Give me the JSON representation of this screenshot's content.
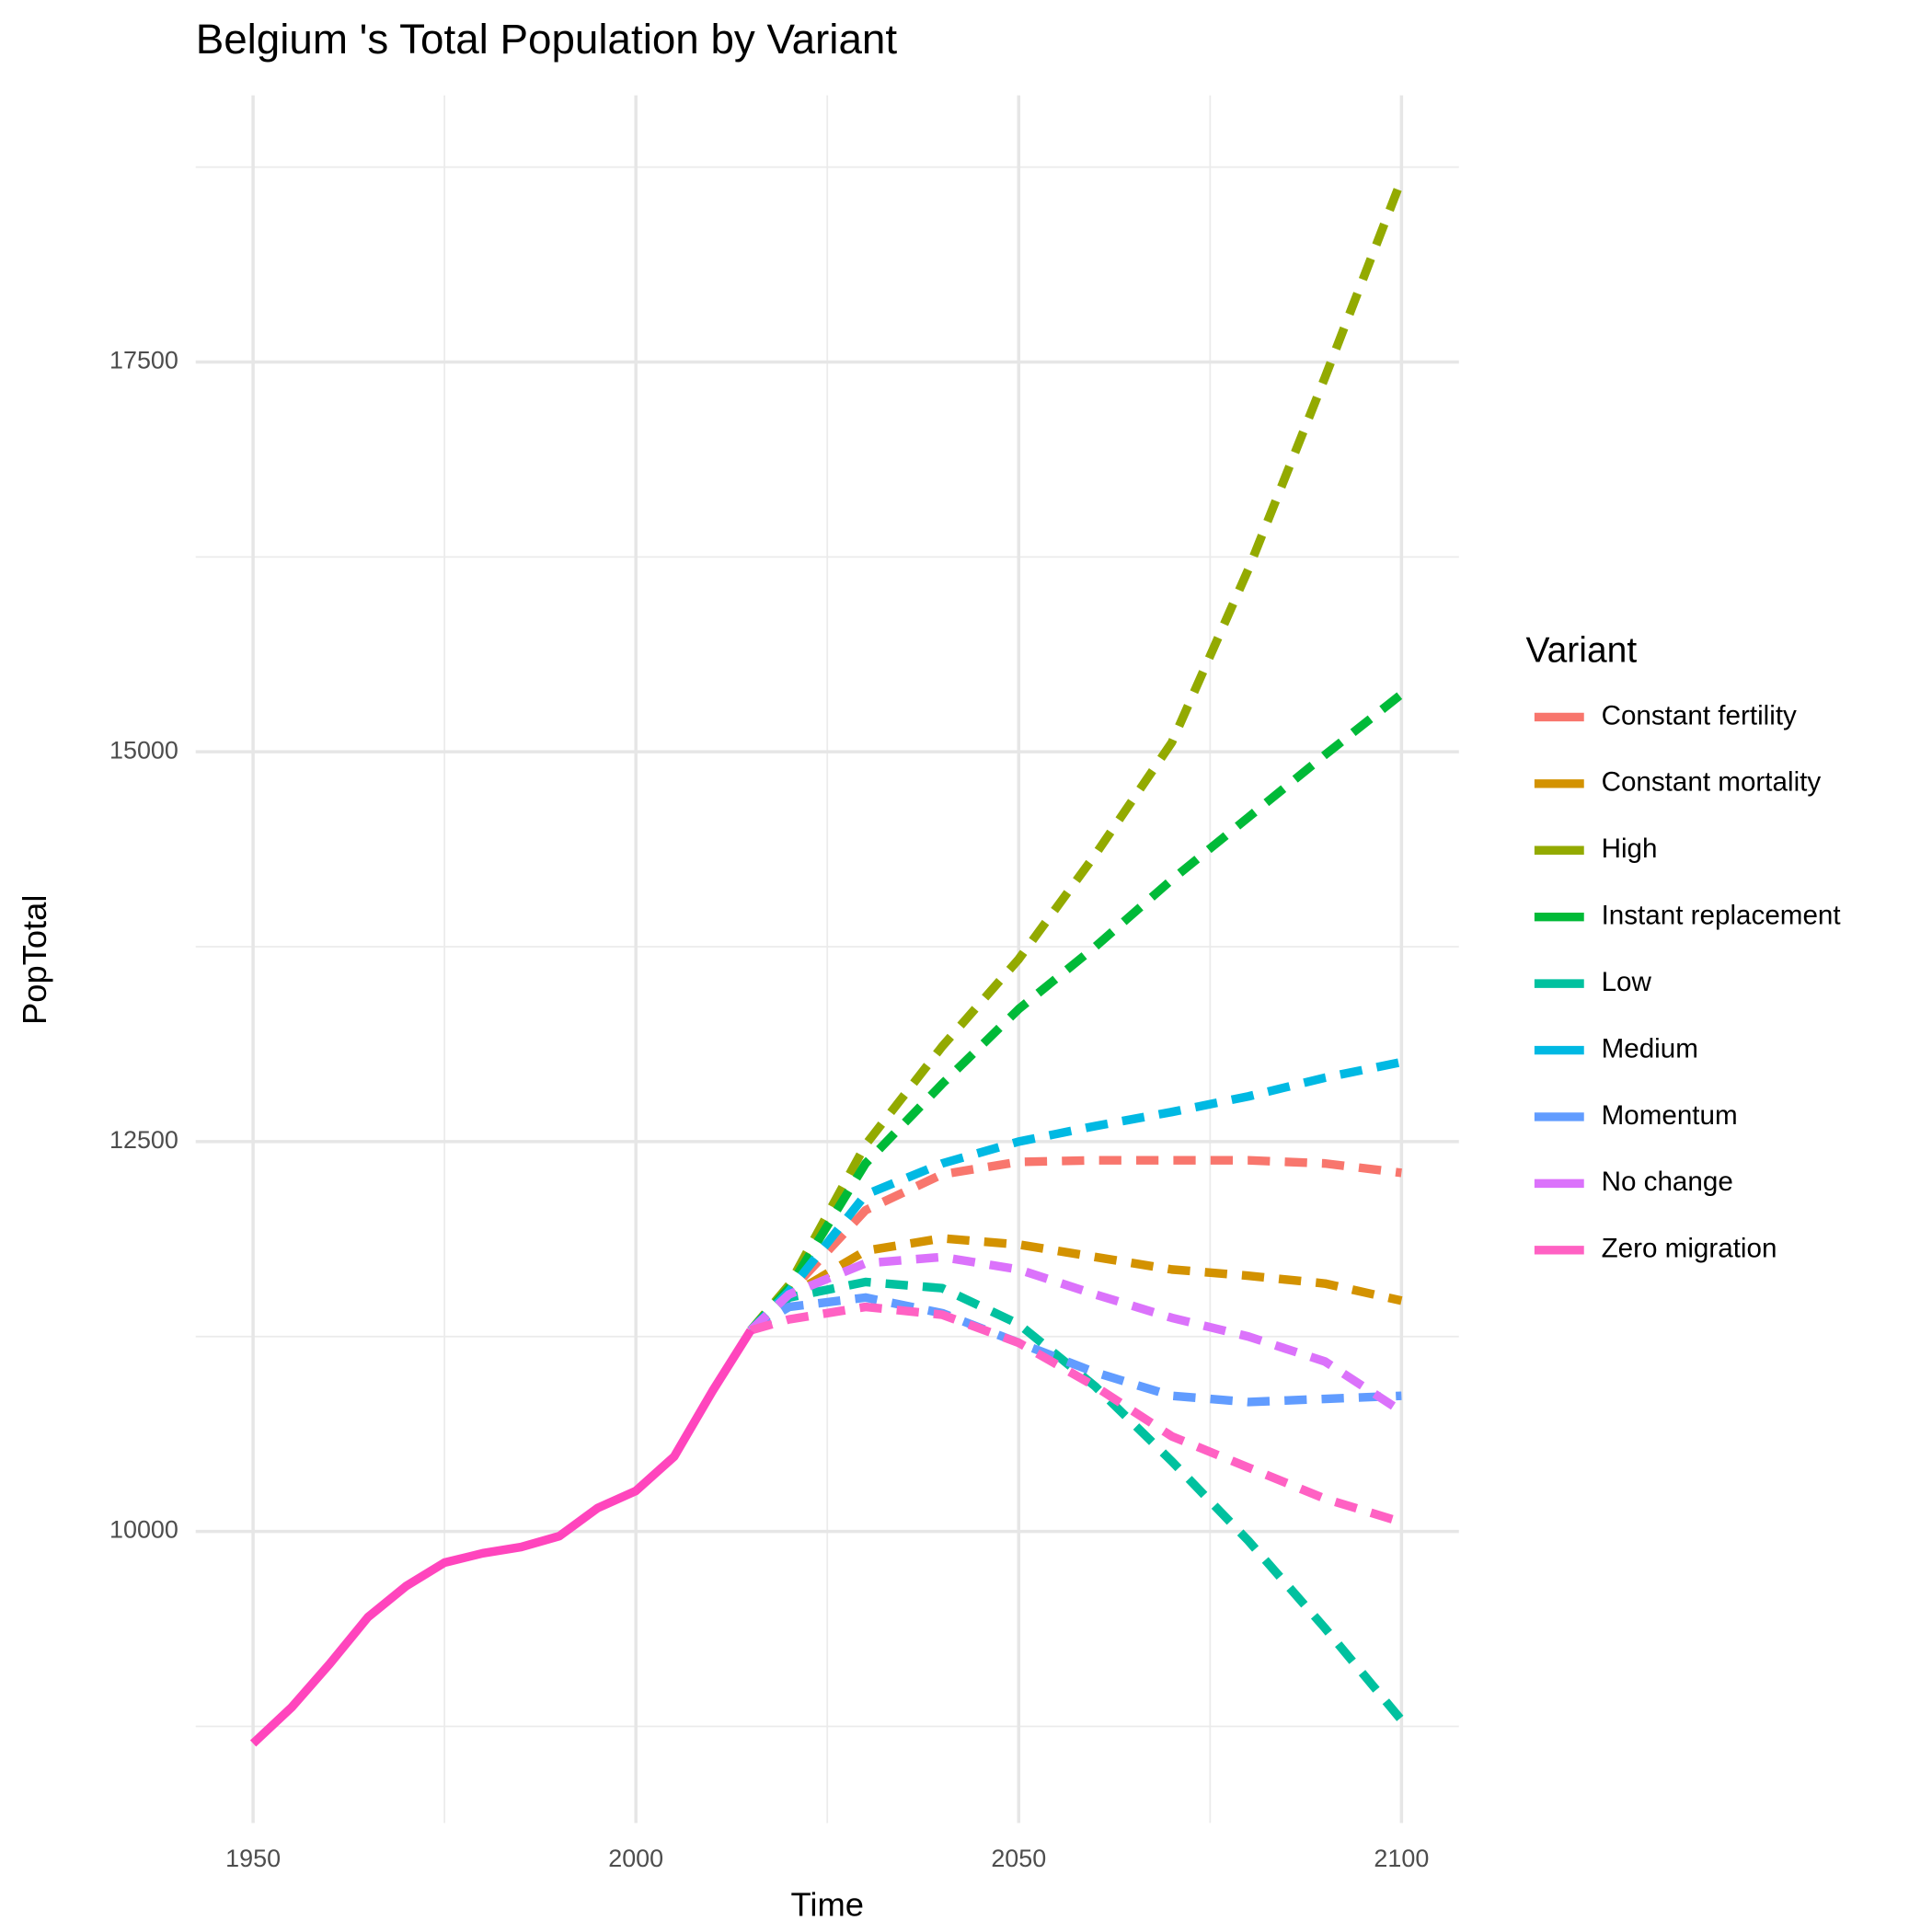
{
  "chart_data": {
    "type": "line",
    "title": "Belgium 's Total Population by Variant",
    "x_label": "Time",
    "y_label": "PopTotal",
    "legend_title": "Variant",
    "legend_position": "right",
    "grid": true,
    "xlim": [
      1942.5,
      2107.5
    ],
    "xticks": [
      1950,
      2000,
      2050,
      2100
    ],
    "xticks_minor": [
      1975,
      2025,
      2075
    ],
    "ylim": [
      8130,
      19210
    ],
    "yticks": [
      10000,
      12500,
      15000,
      17500
    ],
    "yticks_minor": [
      8750,
      11250,
      13750,
      16250,
      18750
    ],
    "estimates": {
      "color": "#ff45bd",
      "x": [
        1950,
        1955,
        1960,
        1965,
        1970,
        1975,
        1980,
        1985,
        1990,
        1995,
        2000,
        2005,
        2010,
        2015
      ],
      "values": [
        8640,
        8870,
        9150,
        9450,
        9650,
        9800,
        9860,
        9900,
        9970,
        10150,
        10260,
        10480,
        10900,
        11290
      ]
    },
    "x": [
      2015,
      2020,
      2030,
      2040,
      2050,
      2060,
      2070,
      2080,
      2090,
      2100
    ],
    "series": [
      {
        "name": "Constant fertility",
        "color": "#F8766D",
        "values": [
          11290,
          11530,
          12060,
          12290,
          12370,
          12380,
          12380,
          12380,
          12360,
          12300
        ]
      },
      {
        "name": "Constant mortality",
        "color": "#D39200",
        "values": [
          11290,
          11510,
          11800,
          11880,
          11840,
          11760,
          11680,
          11640,
          11590,
          11480
        ]
      },
      {
        "name": "High",
        "color": "#93AA00",
        "values": [
          11290,
          11580,
          12480,
          13110,
          13670,
          14340,
          15060,
          16170,
          17400,
          18670
        ]
      },
      {
        "name": "Instant replacement",
        "color": "#00BA38",
        "values": [
          11290,
          11560,
          12360,
          12870,
          13350,
          13750,
          14180,
          14580,
          14980,
          15370
        ]
      },
      {
        "name": "Low",
        "color": "#00C19F",
        "values": [
          11290,
          11500,
          11600,
          11560,
          11330,
          10930,
          10450,
          9940,
          9380,
          8790
        ]
      },
      {
        "name": "Medium",
        "color": "#00B9E3",
        "values": [
          11290,
          11540,
          12160,
          12360,
          12500,
          12600,
          12690,
          12790,
          12910,
          13010
        ]
      },
      {
        "name": "Momentum",
        "color": "#619CFF",
        "values": [
          11290,
          11440,
          11500,
          11400,
          11210,
          11020,
          10870,
          10830,
          10850,
          10870
        ]
      },
      {
        "name": "No change",
        "color": "#DB72FB",
        "values": [
          11290,
          11520,
          11720,
          11760,
          11680,
          11520,
          11370,
          11250,
          11090,
          10770
        ]
      },
      {
        "name": "Zero migration",
        "color": "#FF61C3",
        "values": [
          11290,
          11360,
          11440,
          11390,
          11210,
          10930,
          10610,
          10410,
          10210,
          10060
        ]
      }
    ]
  }
}
